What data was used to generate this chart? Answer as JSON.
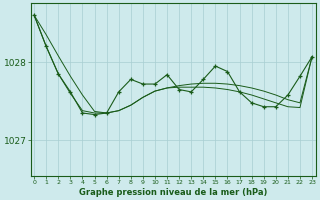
{
  "title": "Graphe pression niveau de la mer (hPa)",
  "bg_color": "#ceeaec",
  "grid_color": "#a8ced2",
  "line_color": "#1a5c1a",
  "xlim": [
    -0.3,
    23.3
  ],
  "ylim": [
    1026.55,
    1028.75
  ],
  "yticks": [
    1027,
    1028
  ],
  "xticks": [
    0,
    1,
    2,
    3,
    4,
    5,
    6,
    7,
    8,
    9,
    10,
    11,
    12,
    13,
    14,
    15,
    16,
    17,
    18,
    19,
    20,
    21,
    22,
    23
  ],
  "hours": [
    0,
    1,
    2,
    3,
    4,
    5,
    6,
    7,
    8,
    9,
    10,
    11,
    12,
    13,
    14,
    15,
    16,
    17,
    18,
    19,
    20,
    21,
    22,
    23
  ],
  "line_upper": [
    1028.6,
    1028.35,
    null,
    null,
    null,
    null,
    null,
    null,
    null,
    null,
    1027.78,
    1027.78,
    1027.78,
    1027.78,
    1027.78,
    1027.78,
    1027.78,
    1027.78,
    1027.78,
    1027.78,
    1027.78,
    1027.78,
    1027.78,
    1028.07
  ],
  "line_mid1": [
    1028.6,
    null,
    null,
    null,
    null,
    null,
    null,
    null,
    null,
    null,
    1027.78,
    null,
    null,
    null,
    null,
    null,
    null,
    null,
    null,
    null,
    null,
    null,
    null,
    1028.07
  ],
  "line_trend1": [
    1028.6,
    1028.35,
    1028.08,
    1027.82,
    1027.58,
    1027.37,
    1027.35,
    1027.38,
    1027.45,
    1027.55,
    1027.63,
    1027.67,
    1027.7,
    1027.72,
    1027.73,
    1027.73,
    1027.72,
    1027.7,
    1027.67,
    1027.63,
    1027.58,
    1027.52,
    1027.48,
    1028.07
  ],
  "line_trend2": [
    1028.6,
    1028.2,
    1027.85,
    1027.6,
    1027.38,
    1027.35,
    1027.35,
    1027.38,
    1027.45,
    1027.55,
    1027.63,
    1027.67,
    1027.68,
    1027.68,
    1027.68,
    1027.67,
    1027.65,
    1027.62,
    1027.58,
    1027.53,
    1027.48,
    1027.43,
    1027.42,
    1028.07
  ],
  "main_line": [
    1028.6,
    1028.2,
    1027.85,
    1027.62,
    1027.35,
    1027.33,
    1027.35,
    1027.62,
    1027.78,
    1027.72,
    1027.72,
    1027.84,
    1027.65,
    1027.62,
    1027.78,
    1027.95,
    1027.88,
    1027.62,
    1027.48,
    1027.43,
    1027.43,
    1027.58,
    1027.82,
    1028.07
  ]
}
